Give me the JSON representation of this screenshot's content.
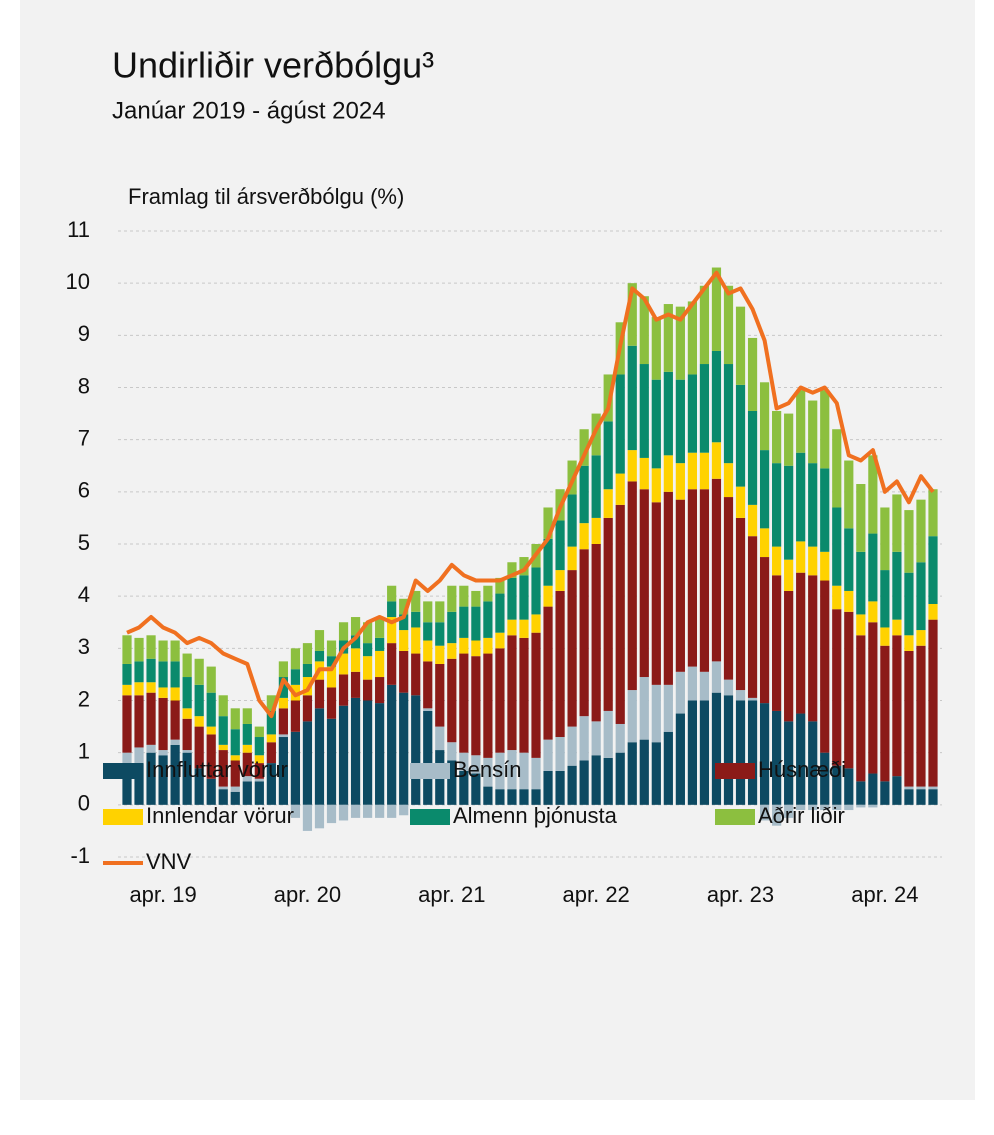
{
  "chart_data": {
    "type": "stacked_bar_line",
    "title": "Undirliðir verðbólgu³",
    "subtitle": "Janúar 2019 - ágúst 2024",
    "y_label": "Framlag til ársverðbólgu (%)",
    "categories": [
      null,
      null,
      null,
      "apr. 19",
      null,
      null,
      null,
      null,
      null,
      null,
      null,
      null,
      null,
      null,
      null,
      "apr. 20",
      null,
      null,
      null,
      null,
      null,
      null,
      null,
      null,
      null,
      null,
      null,
      "apr. 21",
      null,
      null,
      null,
      null,
      null,
      null,
      null,
      null,
      null,
      null,
      null,
      "apr. 22",
      null,
      null,
      null,
      null,
      null,
      null,
      null,
      null,
      null,
      null,
      null,
      "apr. 23",
      null,
      null,
      null,
      null,
      null,
      null,
      null,
      null,
      null,
      null,
      null,
      "apr. 24",
      null,
      null,
      null,
      null
    ],
    "ylim": [
      -1,
      11
    ],
    "yticks": [
      -1,
      0,
      1,
      2,
      3,
      4,
      5,
      6,
      7,
      8,
      9,
      10,
      11
    ],
    "grid": true,
    "series": [
      {
        "name": "Innfluttar vörur",
        "color": "#0d4a62",
        "values": [
          0.75,
          0.8,
          1.0,
          0.95,
          1.15,
          1.0,
          0.7,
          0.5,
          0.3,
          0.25,
          0.45,
          0.45,
          0.8,
          1.3,
          1.4,
          1.6,
          1.85,
          1.65,
          1.9,
          2.05,
          2.0,
          1.95,
          2.3,
          2.15,
          2.1,
          1.8,
          1.05,
          0.85,
          0.65,
          0.6,
          0.35,
          0.3,
          0.3,
          0.3,
          0.3,
          0.65,
          0.65,
          0.75,
          0.85,
          0.95,
          0.9,
          1.0,
          1.2,
          1.25,
          1.2,
          1.4,
          1.75,
          2.0,
          2.0,
          2.15,
          2.1,
          2.0,
          2.0,
          1.95,
          1.8,
          1.6,
          1.75,
          1.6,
          1.0,
          0.75,
          0.7,
          0.45,
          0.6,
          0.45,
          0.55,
          0.3,
          0.3,
          0.3
        ]
      },
      {
        "name": "Bensín",
        "color": "#a7bcc8",
        "values": [
          0.25,
          0.3,
          0.15,
          0.1,
          0.1,
          0.05,
          0,
          0,
          0.05,
          0.1,
          0.1,
          0.05,
          0,
          0.05,
          -0.25,
          -0.5,
          -0.45,
          -0.35,
          -0.3,
          -0.25,
          -0.25,
          -0.25,
          -0.25,
          -0.2,
          0,
          0.05,
          0.45,
          0.35,
          0.35,
          0.35,
          0.55,
          0.7,
          0.75,
          0.7,
          0.6,
          0.6,
          0.65,
          0.75,
          0.85,
          0.65,
          0.9,
          0.55,
          1.0,
          1.2,
          1.1,
          0.9,
          0.8,
          0.65,
          0.55,
          0.6,
          0.3,
          0.2,
          0.05,
          -0.3,
          -0.4,
          -0.25,
          -0.1,
          -0.1,
          -0.1,
          -0.1,
          -0.1,
          -0.05,
          -0.05,
          0,
          0,
          0.05,
          0.05,
          0.05
        ]
      },
      {
        "name": "Húsnæði",
        "color": "#8b1a18",
        "values": [
          1.1,
          1.0,
          1.0,
          1.0,
          0.75,
          0.6,
          0.8,
          0.85,
          0.7,
          0.5,
          0.45,
          0.3,
          0.4,
          0.5,
          0.6,
          0.5,
          0.55,
          0.6,
          0.6,
          0.5,
          0.4,
          0.5,
          0.8,
          0.8,
          0.8,
          0.9,
          1.2,
          1.6,
          1.9,
          1.9,
          2.0,
          2.0,
          2.2,
          2.2,
          2.4,
          2.55,
          2.8,
          3.0,
          3.2,
          3.4,
          3.7,
          4.2,
          4.0,
          3.6,
          3.5,
          3.7,
          3.3,
          3.4,
          3.5,
          3.5,
          3.5,
          3.3,
          3.1,
          2.8,
          2.6,
          2.5,
          2.7,
          2.8,
          3.3,
          3.0,
          3.0,
          2.8,
          2.9,
          2.6,
          2.7,
          2.6,
          2.7,
          3.2
        ]
      },
      {
        "name": "Innlendar vörur",
        "color": "#ffd200",
        "values": [
          0.2,
          0.25,
          0.2,
          0.2,
          0.25,
          0.2,
          0.2,
          0.15,
          0.1,
          0.1,
          0.15,
          0.15,
          0.15,
          0.2,
          0.3,
          0.35,
          0.35,
          0.4,
          0.4,
          0.45,
          0.45,
          0.5,
          0.5,
          0.4,
          0.5,
          0.4,
          0.35,
          0.3,
          0.3,
          0.3,
          0.3,
          0.3,
          0.3,
          0.35,
          0.35,
          0.4,
          0.4,
          0.45,
          0.5,
          0.5,
          0.55,
          0.6,
          0.6,
          0.6,
          0.65,
          0.7,
          0.7,
          0.7,
          0.7,
          0.7,
          0.65,
          0.6,
          0.6,
          0.55,
          0.55,
          0.6,
          0.6,
          0.55,
          0.55,
          0.45,
          0.4,
          0.4,
          0.4,
          0.35,
          0.3,
          0.3,
          0.3,
          0.3
        ]
      },
      {
        "name": "Almenn þjónusta",
        "color": "#0a8a6c",
        "values": [
          0.4,
          0.4,
          0.45,
          0.5,
          0.5,
          0.6,
          0.6,
          0.65,
          0.55,
          0.5,
          0.4,
          0.35,
          0.45,
          0.4,
          0.3,
          0.25,
          0.2,
          0.2,
          0.25,
          0.25,
          0.25,
          0.25,
          0.3,
          0.3,
          0.3,
          0.35,
          0.45,
          0.6,
          0.6,
          0.65,
          0.7,
          0.75,
          0.8,
          0.85,
          0.9,
          0.9,
          0.95,
          1.0,
          1.1,
          1.2,
          1.3,
          1.9,
          2.0,
          1.8,
          1.7,
          1.6,
          1.6,
          1.5,
          1.7,
          1.75,
          1.9,
          1.95,
          1.8,
          1.5,
          1.6,
          1.8,
          1.7,
          1.6,
          1.6,
          1.5,
          1.2,
          1.2,
          1.3,
          1.1,
          1.3,
          1.2,
          1.3,
          1.3
        ]
      },
      {
        "name": "Aðrir liðir",
        "color": "#8cbf3f",
        "values": [
          0.55,
          0.45,
          0.45,
          0.4,
          0.4,
          0.45,
          0.5,
          0.5,
          0.4,
          0.4,
          0.3,
          0.2,
          0.3,
          0.3,
          0.4,
          0.4,
          0.4,
          0.3,
          0.35,
          0.35,
          0.4,
          0.4,
          0.3,
          0.3,
          0.4,
          0.4,
          0.4,
          0.5,
          0.4,
          0.3,
          0.3,
          0.3,
          0.3,
          0.35,
          0.45,
          0.6,
          0.6,
          0.65,
          0.7,
          0.8,
          0.9,
          1.0,
          1.2,
          1.3,
          1.2,
          1.3,
          1.4,
          1.4,
          1.5,
          1.6,
          1.5,
          1.5,
          1.4,
          1.3,
          1.0,
          1.0,
          1.2,
          1.2,
          1.5,
          1.5,
          1.3,
          1.3,
          1.5,
          1.2,
          1.1,
          1.2,
          1.2,
          0.9
        ]
      },
      {
        "name": "VNV",
        "type": "line",
        "color": "#f07020",
        "values": [
          3.3,
          3.4,
          3.6,
          3.4,
          3.3,
          3.1,
          3.2,
          3.1,
          2.9,
          2.8,
          2.7,
          2.0,
          1.7,
          2.4,
          2.1,
          2.2,
          2.6,
          2.6,
          3.0,
          3.2,
          3.5,
          3.6,
          3.5,
          3.6,
          4.3,
          4.1,
          4.3,
          4.6,
          4.4,
          4.3,
          4.3,
          4.3,
          4.4,
          4.5,
          4.8,
          5.1,
          5.7,
          6.2,
          6.7,
          7.2,
          7.6,
          8.8,
          9.9,
          9.7,
          9.3,
          9.4,
          9.3,
          9.6,
          9.9,
          10.2,
          9.8,
          9.9,
          9.5,
          8.9,
          7.6,
          7.7,
          8.0,
          7.9,
          8.0,
          7.7,
          6.7,
          6.6,
          6.8,
          6.0,
          6.2,
          5.8,
          6.3,
          6.0
        ]
      }
    ]
  }
}
